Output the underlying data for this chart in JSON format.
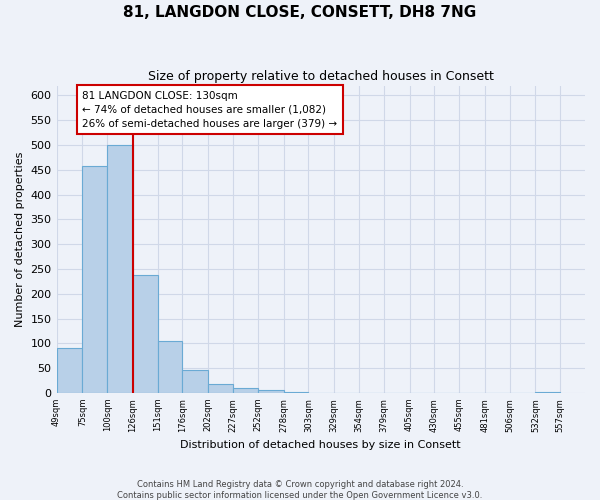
{
  "title": "81, LANGDON CLOSE, CONSETT, DH8 7NG",
  "subtitle": "Size of property relative to detached houses in Consett",
  "xlabel": "Distribution of detached houses by size in Consett",
  "ylabel": "Number of detached properties",
  "bar_edges": [
    49,
    75,
    100,
    126,
    151,
    176,
    202,
    227,
    252,
    278,
    303,
    329,
    354,
    379,
    405,
    430,
    455,
    481,
    506,
    532,
    557
  ],
  "bar_heights": [
    90,
    457,
    500,
    237,
    105,
    47,
    18,
    10,
    6,
    1,
    0,
    0,
    0,
    0,
    0,
    0,
    0,
    0,
    0,
    1
  ],
  "bar_color": "#b8d0e8",
  "bar_edge_color": "#6aaad4",
  "vline_x": 126,
  "vline_color": "#cc0000",
  "annotation_title": "81 LANGDON CLOSE: 130sqm",
  "annotation_line1": "← 74% of detached houses are smaller (1,082)",
  "annotation_line2": "26% of semi-detached houses are larger (379) →",
  "annotation_box_color": "white",
  "annotation_box_edge_color": "#cc0000",
  "ylim": [
    0,
    620
  ],
  "yticks": [
    0,
    50,
    100,
    150,
    200,
    250,
    300,
    350,
    400,
    450,
    500,
    550,
    600
  ],
  "tick_labels": [
    "49sqm",
    "75sqm",
    "100sqm",
    "126sqm",
    "151sqm",
    "176sqm",
    "202sqm",
    "227sqm",
    "252sqm",
    "278sqm",
    "303sqm",
    "329sqm",
    "354sqm",
    "379sqm",
    "405sqm",
    "430sqm",
    "455sqm",
    "481sqm",
    "506sqm",
    "532sqm",
    "557sqm"
  ],
  "footer1": "Contains HM Land Registry data © Crown copyright and database right 2024.",
  "footer2": "Contains public sector information licensed under the Open Government Licence v3.0.",
  "background_color": "#eef2f9",
  "grid_color": "#d0d8e8"
}
